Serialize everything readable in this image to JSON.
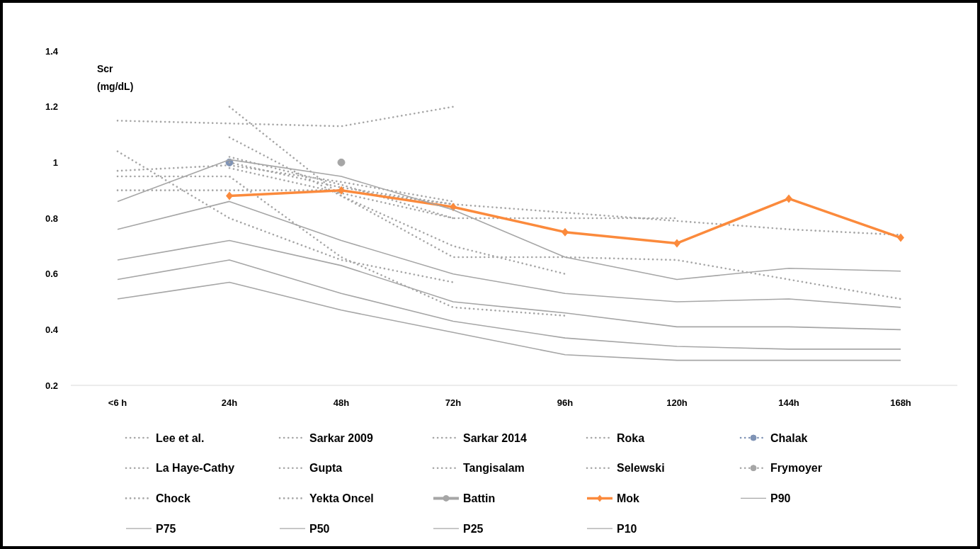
{
  "chart_data": {
    "type": "line",
    "categories": [
      "<6 h",
      "24h",
      "48h",
      "72h",
      "96h",
      "120h",
      "144h",
      "168h"
    ],
    "ylabel": "Scr\n(mg/dL)",
    "ylim": [
      0.2,
      1.4
    ],
    "yticks": [
      0.2,
      0.4,
      0.6,
      0.8,
      1,
      1.2,
      1.4
    ],
    "grid": false,
    "legend": "bottom",
    "series": [
      {
        "name": "Lee et al.",
        "color": "#a6a6a6",
        "line_style": "dotted",
        "values": [
          1.15,
          1.14,
          1.13,
          1.2,
          null,
          null,
          null,
          null
        ]
      },
      {
        "name": "Sarkar 2009",
        "color": "#a6a6a6",
        "line_style": "dotted",
        "values": [
          0.97,
          0.99,
          0.93,
          0.86,
          null,
          null,
          null,
          null
        ]
      },
      {
        "name": "Sarkar 2014",
        "color": "#a6a6a6",
        "line_style": "dotted",
        "values": [
          0.95,
          0.95,
          0.66,
          0.48,
          0.45,
          null,
          null,
          null
        ]
      },
      {
        "name": "Roka",
        "color": "#a6a6a6",
        "line_style": "dotted",
        "values": [
          0.9,
          0.9,
          0.9,
          0.85,
          0.82,
          0.79,
          0.76,
          0.74
        ]
      },
      {
        "name": "Chalak",
        "color": "#7f93b5",
        "line_style": "dotted",
        "marker": "circle",
        "values": [
          null,
          1.0,
          null,
          null,
          null,
          null,
          null,
          null
        ]
      },
      {
        "name": "La Haye-Cathy",
        "color": "#a6a6a6",
        "line_style": "dotted",
        "values": [
          1.04,
          0.8,
          0.65,
          0.57,
          null,
          null,
          null,
          null
        ]
      },
      {
        "name": "Gupta",
        "color": "#a6a6a6",
        "line_style": "dotted",
        "values": [
          null,
          1.2,
          0.88,
          0.7,
          0.6,
          null,
          null,
          null
        ]
      },
      {
        "name": "Tangisalam",
        "color": "#a6a6a6",
        "line_style": "dotted",
        "values": [
          null,
          1.09,
          0.88,
          0.66,
          0.66,
          0.65,
          0.58,
          0.51
        ]
      },
      {
        "name": "Selewski",
        "color": "#a6a6a6",
        "line_style": "dotted",
        "values": [
          null,
          1.02,
          0.92,
          0.8,
          0.8,
          0.8,
          null,
          null
        ]
      },
      {
        "name": "Frymoyer",
        "color": "#a6a6a6",
        "line_style": "dotted",
        "marker": "circle",
        "values": [
          null,
          null,
          1.0,
          null,
          null,
          null,
          null,
          null
        ]
      },
      {
        "name": "Chock",
        "color": "#a6a6a6",
        "line_style": "dotted",
        "values": [
          null,
          1.0,
          0.91,
          0.85,
          null,
          null,
          null,
          null
        ]
      },
      {
        "name": "Yekta Oncel",
        "color": "#a6a6a6",
        "line_style": "dotted",
        "values": [
          null,
          0.98,
          0.89,
          0.8,
          null,
          null,
          null,
          null
        ]
      },
      {
        "name": "Battin",
        "color": "#a6a6a6",
        "line_style": "solid",
        "marker": "circle",
        "values": [
          null,
          null,
          null,
          null,
          null,
          null,
          null,
          null
        ]
      },
      {
        "name": "Mok",
        "color": "#fb8a3c",
        "line_style": "solid",
        "marker": "diamond",
        "values": [
          null,
          0.88,
          0.9,
          0.84,
          0.75,
          0.71,
          0.87,
          0.73
        ]
      },
      {
        "name": "P90",
        "color": "#a6a6a6",
        "line_style": "solid",
        "values": [
          0.86,
          1.01,
          0.95,
          0.83,
          0.66,
          0.58,
          0.62,
          0.61
        ]
      },
      {
        "name": "P75",
        "color": "#a6a6a6",
        "line_style": "solid",
        "values": [
          0.76,
          0.86,
          0.72,
          0.6,
          0.53,
          0.5,
          0.51,
          0.48
        ]
      },
      {
        "name": "P50",
        "color": "#a6a6a6",
        "line_style": "solid",
        "values": [
          0.65,
          0.72,
          0.63,
          0.5,
          0.46,
          0.41,
          0.41,
          0.4
        ]
      },
      {
        "name": "P25",
        "color": "#a6a6a6",
        "line_style": "solid",
        "values": [
          0.58,
          0.65,
          0.53,
          0.43,
          0.37,
          0.34,
          0.33,
          0.33
        ]
      },
      {
        "name": "P10",
        "color": "#a6a6a6",
        "line_style": "solid",
        "values": [
          0.51,
          0.57,
          0.47,
          0.39,
          0.31,
          0.29,
          0.29,
          0.29
        ]
      }
    ]
  }
}
